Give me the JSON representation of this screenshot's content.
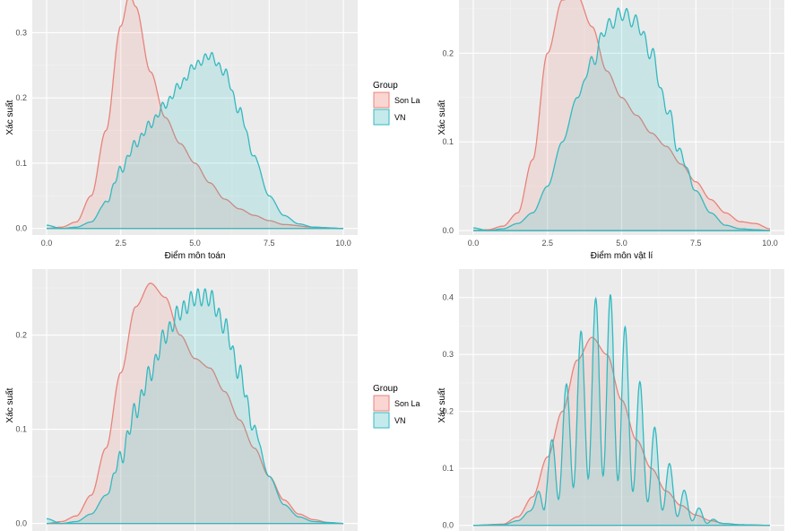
{
  "figure": {
    "legend_title": "Group",
    "groups": [
      {
        "name": "Son La",
        "line": "#e8837a",
        "fill": "#f8766d"
      },
      {
        "name": "VN",
        "line": "#33b9c0",
        "fill": "#00bfc4"
      }
    ],
    "background": "#ebebeb",
    "grid_major": "#ffffff"
  },
  "chart_data": [
    {
      "type": "area",
      "position": "top-left",
      "xlabel": "Điểm môn toán",
      "ylabel": "Xác suất",
      "xlim": [
        0,
        10
      ],
      "ylim": [
        -0.01,
        0.35
      ],
      "xticks": [
        0,
        2.5,
        5,
        7.5,
        10
      ],
      "xtick_labels": [
        "0.0",
        "2.5",
        "5.0",
        "7.5",
        "10.0"
      ],
      "yticks": [
        0,
        0.1,
        0.2,
        0.3
      ],
      "ytick_labels": [
        "0.0",
        "0.1",
        "0.2",
        "0.3"
      ],
      "grid": true,
      "series": [
        {
          "name": "Son La",
          "x": [
            0,
            0.5,
            1,
            1.5,
            2,
            2.5,
            2.8,
            3,
            3.5,
            4,
            4.5,
            5,
            5.5,
            6,
            6.5,
            7,
            7.5,
            8,
            9,
            10
          ],
          "y": [
            0,
            0.002,
            0.01,
            0.05,
            0.15,
            0.31,
            0.36,
            0.34,
            0.24,
            0.17,
            0.13,
            0.1,
            0.07,
            0.045,
            0.03,
            0.02,
            0.012,
            0.006,
            0.002,
            0
          ]
        },
        {
          "name": "VN",
          "x": [
            0,
            0.5,
            1,
            1.5,
            2,
            2.5,
            3,
            3.5,
            4,
            4.5,
            5,
            5.5,
            6,
            6.5,
            7,
            7.5,
            8,
            8.5,
            9,
            9.5,
            10
          ],
          "y": [
            0.005,
            0,
            0.002,
            0.01,
            0.04,
            0.09,
            0.13,
            0.16,
            0.19,
            0.22,
            0.25,
            0.265,
            0.24,
            0.18,
            0.11,
            0.05,
            0.02,
            0.007,
            0.002,
            0.001,
            0
          ],
          "ripple": {
            "amp": 0.006,
            "period": 0.24,
            "from": 1.8,
            "to": 7.2
          }
        }
      ]
    },
    {
      "type": "area",
      "position": "top-right",
      "xlabel": "Điểm môn vật lí",
      "ylabel": "Xác suất",
      "xlim": [
        0,
        10
      ],
      "ylim": [
        -0.005,
        0.26
      ],
      "xticks": [
        0,
        2.5,
        5,
        7.5,
        10
      ],
      "xtick_labels": [
        "0.0",
        "2.5",
        "5.0",
        "7.5",
        "10.0"
      ],
      "yticks": [
        0,
        0.1,
        0.2
      ],
      "ytick_labels": [
        "0.0",
        "0.1",
        "0.2"
      ],
      "grid": true,
      "series": [
        {
          "name": "Son La",
          "x": [
            0,
            0.5,
            1,
            1.5,
            2,
            2.5,
            3,
            3.5,
            4,
            4.5,
            5,
            5.5,
            6,
            6.5,
            7,
            7.5,
            8,
            8.5,
            9,
            9.5,
            10
          ],
          "y": [
            0,
            0.001,
            0.005,
            0.02,
            0.08,
            0.2,
            0.26,
            0.265,
            0.23,
            0.18,
            0.15,
            0.13,
            0.11,
            0.095,
            0.075,
            0.055,
            0.035,
            0.02,
            0.01,
            0.008,
            0.002
          ]
        },
        {
          "name": "VN",
          "x": [
            0,
            0.5,
            1,
            1.5,
            2,
            2.5,
            3,
            3.5,
            4,
            4.5,
            5,
            5.5,
            6,
            6.5,
            7,
            7.5,
            8,
            8.5,
            9,
            9.5,
            10
          ],
          "y": [
            0.003,
            0,
            0.002,
            0.008,
            0.02,
            0.05,
            0.1,
            0.15,
            0.19,
            0.23,
            0.245,
            0.235,
            0.2,
            0.14,
            0.085,
            0.045,
            0.02,
            0.006,
            0.002,
            0.001,
            0
          ],
          "ripple": {
            "amp": 0.008,
            "period": 0.3,
            "from": 3.5,
            "to": 7.5
          }
        }
      ]
    },
    {
      "type": "area",
      "position": "bottom-left",
      "xlabel": "",
      "ylabel": "Xác suất",
      "xlim": [
        0,
        10
      ],
      "ylim": [
        -0.008,
        0.27
      ],
      "xticks": [
        0,
        2.5,
        5,
        7.5,
        10
      ],
      "xtick_labels": [],
      "yticks": [
        0,
        0.1,
        0.2
      ],
      "ytick_labels": [
        "0.0",
        "0.1",
        "0.2"
      ],
      "grid": true,
      "series": [
        {
          "name": "Son La",
          "x": [
            0,
            0.5,
            1,
            1.5,
            2,
            2.5,
            3,
            3.5,
            4,
            4.5,
            5,
            5.5,
            6,
            6.5,
            7,
            7.5,
            8,
            8.5,
            9,
            9.5,
            10
          ],
          "y": [
            0,
            0.002,
            0.008,
            0.03,
            0.08,
            0.16,
            0.23,
            0.255,
            0.24,
            0.2,
            0.175,
            0.165,
            0.14,
            0.11,
            0.08,
            0.05,
            0.025,
            0.01,
            0.004,
            0.001,
            0
          ]
        },
        {
          "name": "VN",
          "x": [
            0,
            0.5,
            1,
            1.5,
            2,
            2.5,
            3,
            3.5,
            4,
            4.5,
            5,
            5.5,
            6,
            6.5,
            7,
            7.5,
            8,
            8.5,
            9,
            9.5,
            10
          ],
          "y": [
            0.005,
            0,
            0.002,
            0.01,
            0.03,
            0.07,
            0.12,
            0.16,
            0.2,
            0.225,
            0.24,
            0.24,
            0.21,
            0.16,
            0.1,
            0.05,
            0.02,
            0.007,
            0.002,
            0.001,
            0
          ],
          "ripple": {
            "amp": 0.009,
            "period": 0.24,
            "from": 2,
            "to": 7.3
          }
        }
      ]
    },
    {
      "type": "area",
      "position": "bottom-right",
      "xlabel": "",
      "ylabel": "Xác suất",
      "xlim": [
        0,
        10
      ],
      "ylim": [
        -0.01,
        0.45
      ],
      "xticks": [
        0,
        2.5,
        5,
        7.5,
        10
      ],
      "xtick_labels": [],
      "yticks": [
        0,
        0.1,
        0.2,
        0.3,
        0.4
      ],
      "ytick_labels": [
        "0.0",
        "0.1",
        "0.2",
        "0.3",
        "0.4"
      ],
      "grid": true,
      "series": [
        {
          "name": "Son La",
          "x": [
            0,
            1,
            1.5,
            2,
            2.5,
            3,
            3.5,
            4,
            4.5,
            5,
            5.5,
            6,
            6.5,
            7,
            7.5,
            8,
            8.5,
            9,
            10
          ],
          "y": [
            0,
            0.002,
            0.015,
            0.05,
            0.12,
            0.2,
            0.29,
            0.33,
            0.3,
            0.22,
            0.15,
            0.1,
            0.06,
            0.035,
            0.018,
            0.008,
            0.003,
            0.001,
            0
          ]
        },
        {
          "name": "VN",
          "x": [
            0,
            1,
            1.5,
            2,
            2.5,
            3,
            3.5,
            4,
            4.5,
            5,
            5.5,
            6,
            6.5,
            7,
            7.5,
            8,
            8.5,
            9,
            10
          ],
          "y": [
            0,
            0.001,
            0.008,
            0.03,
            0.08,
            0.14,
            0.2,
            0.24,
            0.25,
            0.22,
            0.16,
            0.11,
            0.07,
            0.04,
            0.02,
            0.008,
            0.003,
            0.001,
            0
          ],
          "ripple": {
            "amp_rel": 0.65,
            "period": 0.5,
            "from": 1.8,
            "to": 8.5
          }
        }
      ]
    }
  ]
}
